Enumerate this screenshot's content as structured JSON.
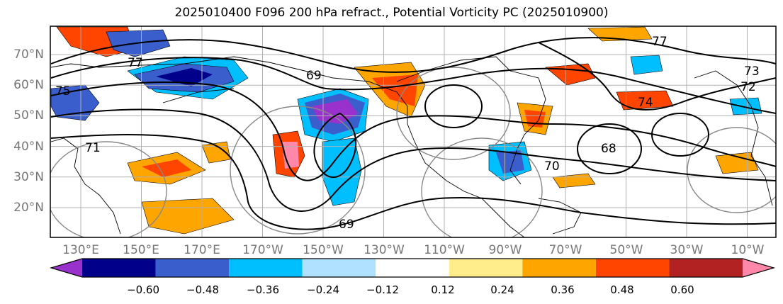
{
  "title": "2025010400 F096 200 hPa refract., Potential Vorticity PC (2025010900)",
  "map": {
    "lat_labels": [
      "70°N",
      "60°N",
      "50°N",
      "40°N",
      "30°N",
      "20°N"
    ],
    "lat_values": [
      70,
      60,
      50,
      40,
      30,
      20
    ],
    "lon_labels": [
      "130°E",
      "150°E",
      "170°E",
      "170°W",
      "150°W",
      "130°W",
      "110°W",
      "90°W",
      "70°W",
      "50°W",
      "30°W",
      "10°W"
    ],
    "contour_labels": [
      "69",
      "77",
      "75",
      "74",
      "71",
      "70",
      "73",
      "72",
      "68"
    ]
  },
  "colorbar": {
    "ticks": [
      "−0.60",
      "−0.48",
      "−0.36",
      "−0.24",
      "−0.12",
      "0.12",
      "0.24",
      "0.36",
      "0.48",
      "0.60"
    ],
    "colors": [
      "#9932cc",
      "#00008b",
      "#3a5fcd",
      "#00bfff",
      "#b0e2ff",
      "#ffffff",
      "#ffec8b",
      "#ffa500",
      "#ff4500",
      "#b22222",
      "#ff88aa"
    ]
  },
  "shade_colors": {
    "neg_strong": "#9932cc",
    "neg_dark": "#00008b",
    "neg_mid": "#3a5fcd",
    "neg_light": "#00bfff",
    "neg_pale": "#b0e2ff",
    "pos_pale": "#ffec8b",
    "pos_light": "#ffa500",
    "pos_mid": "#ff4500",
    "pos_dark": "#b22222",
    "pos_strong": "#ff88aa"
  }
}
